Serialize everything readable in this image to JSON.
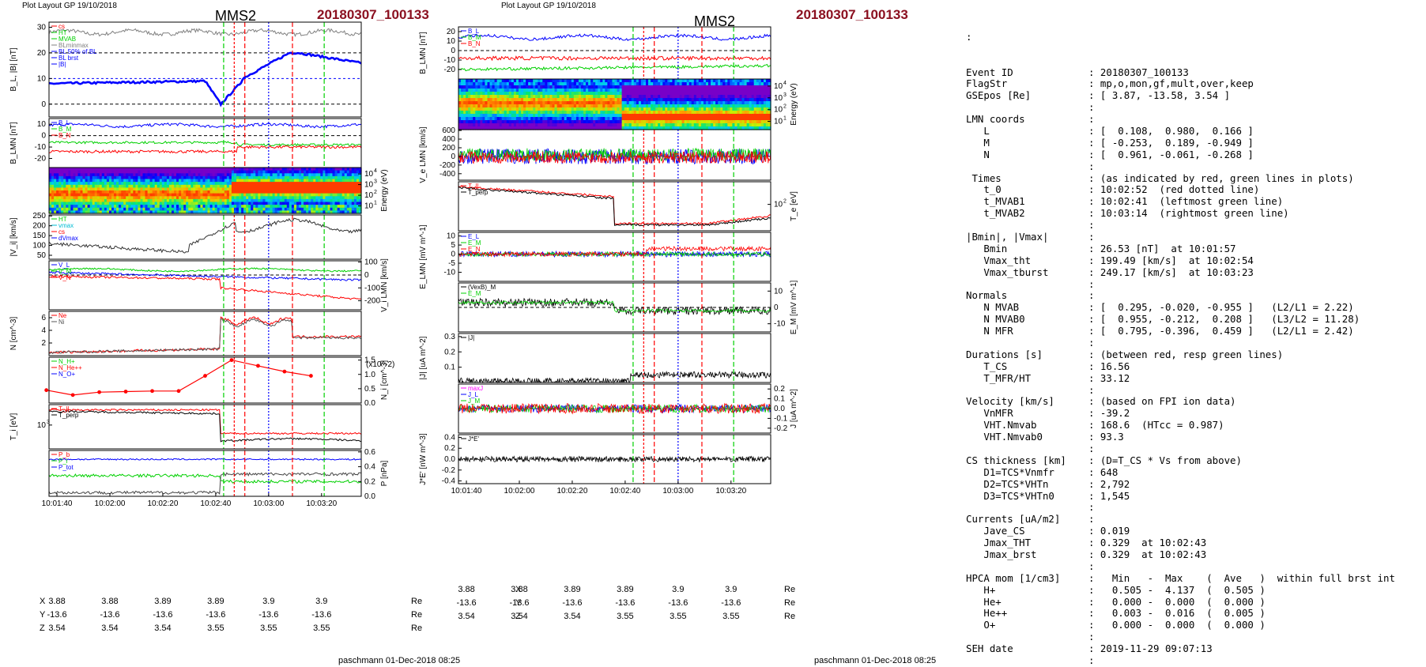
{
  "header": {
    "layout_label_left": "Plot Layout GP 19/10/2018",
    "layout_label_right": "Plot Layout GP 19/10/2018",
    "spacecraft": "MMS2",
    "event": "20180307_100133"
  },
  "footer": {
    "left": "paschmann 01-Dec-2018 08:25",
    "right": "paschmann 01-Dec-2018 08:25"
  },
  "time_ticks": [
    "10:01:40",
    "10:02:00",
    "10:02:20",
    "10:02:40",
    "10:03:00",
    "10:03:20"
  ],
  "coords_left": {
    "rows": [
      {
        "label": "X",
        "values": [
          "3.88",
          "3.88",
          "3.89",
          "3.89",
          "3.9",
          "3.9"
        ],
        "unit": "Re"
      },
      {
        "label": "Y",
        "values": [
          "-13.6",
          "-13.6",
          "-13.6",
          "-13.6",
          "-13.6",
          "-13.6"
        ],
        "unit": "Re"
      },
      {
        "label": "Z",
        "values": [
          "3.54",
          "3.54",
          "3.54",
          "3.55",
          "3.55",
          "3.55"
        ],
        "unit": "Re"
      }
    ]
  },
  "coords_right": {
    "rows": [
      {
        "label": "X",
        "values": [
          "3.88",
          "3.88",
          "3.89",
          "3.89",
          "3.9",
          "3.9"
        ],
        "unit": "Re"
      },
      {
        "label": "Y",
        "values": [
          "-13.6",
          "-13.6",
          "-13.6",
          "-13.6",
          "-13.6",
          "-13.6"
        ],
        "unit": "Re"
      },
      {
        "label": "Z",
        "values": [
          "3.54",
          "3.54",
          "3.54",
          "3.55",
          "3.55",
          "3.55"
        ],
        "unit": "Re"
      }
    ]
  },
  "colors": {
    "red": "#ff0000",
    "green": "#00d000",
    "blue": "#0000ff",
    "black": "#000000",
    "gray": "#808080",
    "magenta": "#ff00ff",
    "maroon": "#8b1020"
  },
  "chart_data": [
    {
      "id": "L1",
      "type": "line",
      "ylabel": "B_L, |B| [nT]",
      "ylim": [
        -5,
        32
      ],
      "yticks": [
        "30",
        "20",
        "10",
        "0"
      ],
      "legend": [
        "cs",
        "HT",
        "MVAB",
        "BLminmax",
        "BL 50% of BL",
        "BL brst",
        "|B|"
      ]
    },
    {
      "id": "L2",
      "type": "line",
      "ylabel": "B_LMN [nT]",
      "ylim": [
        -28,
        15
      ],
      "yticks": [
        "10",
        "0",
        "-10",
        "-20"
      ],
      "legend": [
        "B_L",
        "B_M",
        "B_N"
      ]
    },
    {
      "id": "L3",
      "type": "heatmap",
      "ylabel": "Energy (eV)",
      "yticks": [
        "10^4",
        "10^3",
        "10^2",
        "10^1"
      ]
    },
    {
      "id": "L4",
      "type": "line",
      "ylabel": "|V_i| [km/s]",
      "ylim": [
        30,
        255
      ],
      "yticks": [
        "250",
        "200",
        "150",
        "100",
        "50"
      ],
      "legend": [
        "HT",
        "vmax",
        "cs",
        "dVmax"
      ]
    },
    {
      "id": "L5",
      "type": "line",
      "ylabel": "V_i LMN [km/s]",
      "ylim": [
        -270,
        110
      ],
      "yticks": [
        "100",
        "0",
        "-100",
        "-200"
      ],
      "legend": [
        "V_L",
        "V_M",
        "V_N"
      ]
    },
    {
      "id": "L6",
      "type": "line",
      "ylabel": "N [cm^-3]",
      "ylim": [
        0,
        7
      ],
      "yticks": [
        "6",
        "4",
        "2"
      ],
      "legend": [
        "Ne",
        "Ni"
      ]
    },
    {
      "id": "L7",
      "type": "line",
      "ylabel": "N_i [cm^-3]",
      "ylim": [
        0,
        1.6
      ],
      "yticks": [
        "1.5",
        "1.0",
        "0.5",
        "0.0"
      ],
      "scale_label": "(x10^-2)",
      "legend": [
        "N_H+",
        "N_He++",
        "N_O+"
      ],
      "series": [
        {
          "name": "N_He++",
          "x": [
            "10:01:36",
            "10:01:46",
            "10:01:56",
            "10:02:06",
            "10:02:16",
            "10:02:26",
            "10:02:36",
            "10:02:46",
            "10:02:56",
            "10:03:06",
            "10:03:16"
          ],
          "values": [
            0.45,
            0.28,
            0.38,
            0.4,
            0.42,
            0.42,
            0.95,
            1.5,
            1.3,
            1.1,
            0.95
          ]
        }
      ]
    },
    {
      "id": "L8",
      "type": "line",
      "ylabel": "T_i [eV]",
      "yticks": [
        "10^3"
      ],
      "legend": [
        "T_||",
        "T_perp"
      ]
    },
    {
      "id": "L9",
      "type": "line",
      "ylabel": "P [nPa]",
      "ylim": [
        0,
        0.62
      ],
      "yticks": [
        "0.6",
        "0.4",
        "0.2",
        "0.0"
      ],
      "legend": [
        "P_b",
        "P_i",
        "P_tot"
      ]
    },
    {
      "id": "R1",
      "type": "line",
      "ylabel": "B_LMN [nT]",
      "ylim": [
        -30,
        25
      ],
      "yticks": [
        "20",
        "10",
        "0",
        "-10",
        "-20"
      ],
      "legend": [
        "B_L",
        "B_M",
        "B_N"
      ]
    },
    {
      "id": "R2",
      "type": "heatmap",
      "ylabel": "Energy (eV)",
      "yticks": [
        "10^4",
        "10^3",
        "10^2",
        "10^1"
      ]
    },
    {
      "id": "R3",
      "type": "line",
      "ylabel": "V_e LMN [km/s]",
      "ylim": [
        -550,
        620
      ],
      "yticks": [
        "600",
        "400",
        "200",
        "0",
        "-200",
        "-400"
      ]
    },
    {
      "id": "R4",
      "type": "line",
      "ylabel": "T_e [eV]",
      "yticks": [
        "10^2"
      ],
      "legend": [
        "T_||",
        "T_perp"
      ]
    },
    {
      "id": "R5",
      "type": "line",
      "ylabel": "E_LMN [mV m^-1]",
      "ylim": [
        -15,
        12
      ],
      "yticks": [
        "10",
        "5",
        "0",
        "-5",
        "-10"
      ],
      "legend": [
        "E_L",
        "E_M",
        "E_N"
      ]
    },
    {
      "id": "R6",
      "type": "line",
      "ylabel": "E_M [mV m^-1]",
      "ylim": [
        -15,
        15
      ],
      "yticks": [
        "10",
        "0",
        "-10"
      ],
      "legend": [
        "(VexB)_M",
        "E_M"
      ]
    },
    {
      "id": "R7",
      "type": "line",
      "ylabel": "|J| [uA m^-2]",
      "ylim": [
        0,
        0.32
      ],
      "yticks": [
        "0.3",
        "0.2",
        "0.1"
      ],
      "legend": [
        "|J|"
      ]
    },
    {
      "id": "R8",
      "type": "line",
      "ylabel": "J [uA m^-2]",
      "ylim": [
        -0.25,
        0.25
      ],
      "yticks": [
        "0.2",
        "0.1",
        "0.0",
        "-0.1",
        "-0.2"
      ],
      "legend": [
        "maxJ",
        "J_L",
        "J_M"
      ]
    },
    {
      "id": "R9",
      "type": "line",
      "ylabel": "J*E' [nW m^-3]",
      "ylim": [
        -0.45,
        0.45
      ],
      "yticks": [
        "0.4",
        "0.2",
        "0.0",
        "-0.2",
        "-0.4"
      ],
      "legend": [
        "J*E'"
      ]
    }
  ],
  "info": {
    "lead": ":",
    "rows": [
      [
        "Event ID",
        ": 20180307_100133"
      ],
      [
        "FlagStr",
        ": mp,o,mon,gf,mult,over,keep"
      ],
      [
        "GSEpos [Re]",
        ": [ 3.87, -13.58, 3.54 ]"
      ],
      [
        "",
        ":"
      ],
      [
        "LMN coords",
        ":"
      ],
      [
        "   L",
        ": [  0.108,  0.980,  0.166 ]"
      ],
      [
        "   M",
        ": [ -0.253,  0.189, -0.949 ]"
      ],
      [
        "   N",
        ": [  0.961, -0.061, -0.268 ]"
      ],
      [
        "",
        ":"
      ],
      [
        " Times",
        ": (as indicated by red, green lines in plots)"
      ],
      [
        "   t_0",
        ": 10:02:52  (red dotted line)"
      ],
      [
        "   t_MVAB1",
        ": 10:02:41  (leftmost green line)"
      ],
      [
        "   t_MVAB2",
        ": 10:03:14  (rightmost green line)"
      ],
      [
        "",
        ":"
      ],
      [
        "|Bmin|, |Vmax|",
        ":"
      ],
      [
        "   Bmin",
        ": 26.53 [nT]  at 10:01:57"
      ],
      [
        "   Vmax_tht",
        ": 199.49 [km/s]  at 10:02:54"
      ],
      [
        "   Vmax_tburst",
        ": 249.17 [km/s]  at 10:03:23"
      ],
      [
        "",
        ":"
      ],
      [
        "Normals",
        ":"
      ],
      [
        "   N MVAB",
        ": [  0.295, -0.020, -0.955 ]   (L2/L1 = 2.22)"
      ],
      [
        "   N MVAB0",
        ": [  0.955, -0.212,  0.208 ]   (L3/L2 = 11.28)"
      ],
      [
        "   N MFR",
        ": [  0.795, -0.396,  0.459 ]   (L2/L1 = 2.42)"
      ],
      [
        "",
        ":"
      ],
      [
        "Durations [s]",
        ": (between red, resp green lines)"
      ],
      [
        "   T_CS",
        ": 16.56"
      ],
      [
        "   T_MFR/HT",
        ": 33.12"
      ],
      [
        "",
        ":"
      ],
      [
        "Velocity [km/s]",
        ": (based on FPI ion data)"
      ],
      [
        "   VnMFR",
        ": -39.2"
      ],
      [
        "   VHT.Nmvab",
        ": 168.6  (HTcc = 0.987)"
      ],
      [
        "   VHT.Nmvab0",
        ": 93.3"
      ],
      [
        "",
        ":"
      ],
      [
        "CS thickness [km]",
        ": (D=T_CS * Vs from above)"
      ],
      [
        "   D1=TCS*Vnmfr",
        ": 648"
      ],
      [
        "   D2=TCS*VHTn",
        ": 2,792"
      ],
      [
        "   D3=TCS*VHTn0",
        ": 1,545"
      ],
      [
        "",
        ":"
      ],
      [
        "Currents [uA/m2]",
        ":"
      ],
      [
        "   Jave_CS",
        ": 0.019"
      ],
      [
        "   Jmax_THT",
        ": 0.329  at 10:02:43"
      ],
      [
        "   Jmax_brst",
        ": 0.329  at 10:02:43"
      ],
      [
        "",
        ":"
      ],
      [
        "HPCA mom [1/cm3]",
        ":   Min   -  Max    (  Ave   )  within full brst int"
      ],
      [
        "   H+",
        ":   0.505 -  4.137  (  0.505 )"
      ],
      [
        "   He+",
        ":   0.000 -  0.000  (  0.000 )"
      ],
      [
        "   He++",
        ":   0.003 -  0.016  (  0.005 )"
      ],
      [
        "   O+",
        ":   0.000 -  0.000  (  0.000 )"
      ],
      [
        "",
        ":"
      ],
      [
        "SEH date",
        ": 2019-11-29 09:07:13"
      ],
      [
        "",
        ":"
      ]
    ]
  }
}
